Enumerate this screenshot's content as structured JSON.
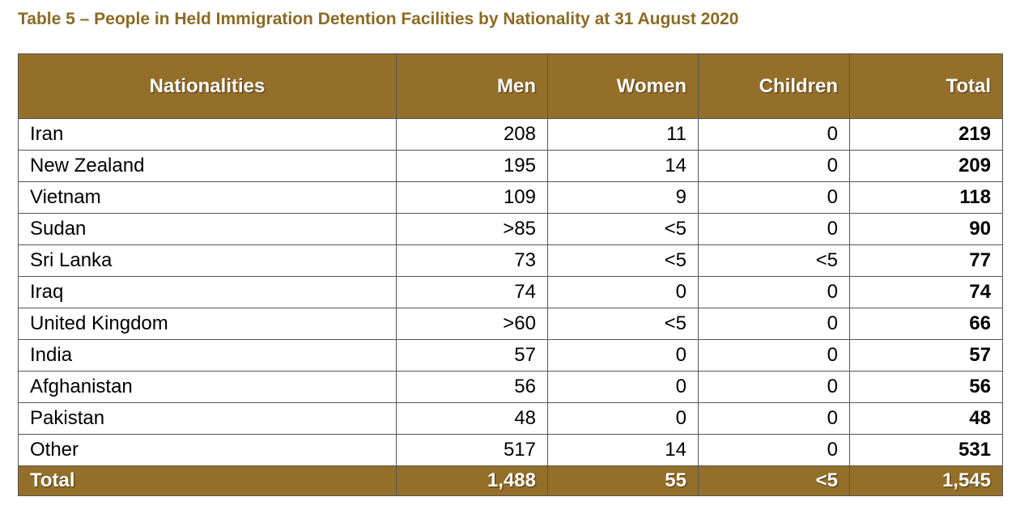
{
  "title": "Table 5 – People in Held Immigration Detention Facilities by Nationality at 31 August 2020",
  "table": {
    "header": [
      "Nationalities",
      "Men",
      "Women",
      "Children",
      "Total"
    ],
    "rows": [
      [
        "Iran",
        "208",
        "11",
        "0",
        "219"
      ],
      [
        "New Zealand",
        "195",
        "14",
        "0",
        "209"
      ],
      [
        "Vietnam",
        "109",
        "9",
        "0",
        "118"
      ],
      [
        "Sudan",
        ">85",
        "<5",
        "0",
        "90"
      ],
      [
        "Sri Lanka",
        "73",
        "<5",
        "<5",
        "77"
      ],
      [
        "Iraq",
        "74",
        "0",
        "0",
        "74"
      ],
      [
        "United Kingdom",
        ">60",
        "<5",
        "0",
        "66"
      ],
      [
        "India",
        "57",
        "0",
        "0",
        "57"
      ],
      [
        "Afghanistan",
        "56",
        "0",
        "0",
        "56"
      ],
      [
        "Pakistan",
        "48",
        "0",
        "0",
        "48"
      ],
      [
        "Other",
        "517",
        "14",
        "0",
        "531"
      ]
    ],
    "footer": [
      "Total",
      "1,488",
      "55",
      "<5",
      "1,545"
    ]
  }
}
